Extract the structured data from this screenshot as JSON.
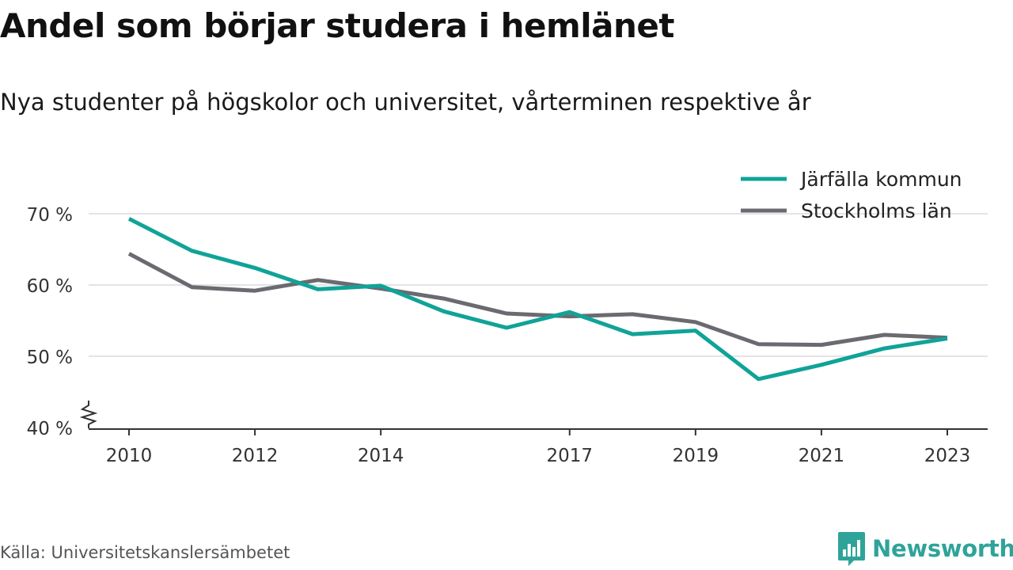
{
  "chart_data": {
    "type": "line",
    "title": "Andel som börjar studera i hemlänet",
    "subtitle": "Nya studenter på högskolor och universitet, vårterminen respektive år",
    "x": [
      2010,
      2011,
      2012,
      2013,
      2014,
      2015,
      2016,
      2017,
      2018,
      2019,
      2020,
      2021,
      2022,
      2023
    ],
    "x_tick_values": [
      2010,
      2012,
      2014,
      2017,
      2019,
      2021,
      2023
    ],
    "x_tick_labels": [
      "2010",
      "2012",
      "2014",
      "2017",
      "2019",
      "2021",
      "2023"
    ],
    "y_tick_values": [
      40,
      50,
      60,
      70
    ],
    "y_tick_labels": [
      "40 %",
      "50 %",
      "60 %",
      "70 %"
    ],
    "ylim": [
      40,
      70
    ],
    "y_axis_break": true,
    "grid": true,
    "legend_position": "top-right",
    "series": [
      {
        "name": "Järfälla kommun",
        "color": "#10a398",
        "values": [
          69.3,
          64.8,
          62.4,
          59.4,
          59.9,
          56.3,
          54.0,
          56.2,
          53.1,
          53.6,
          46.8,
          48.8,
          51.1,
          52.5
        ]
      },
      {
        "name": "Stockholms län",
        "color": "#6b6a70",
        "values": [
          64.4,
          59.7,
          59.2,
          60.7,
          59.5,
          58.1,
          56.0,
          55.6,
          55.9,
          54.8,
          51.7,
          51.6,
          53.0,
          52.6
        ]
      }
    ]
  },
  "footer": {
    "source": "Källa: Universitetskanslersämbetet",
    "brand": "Newsworthy"
  }
}
